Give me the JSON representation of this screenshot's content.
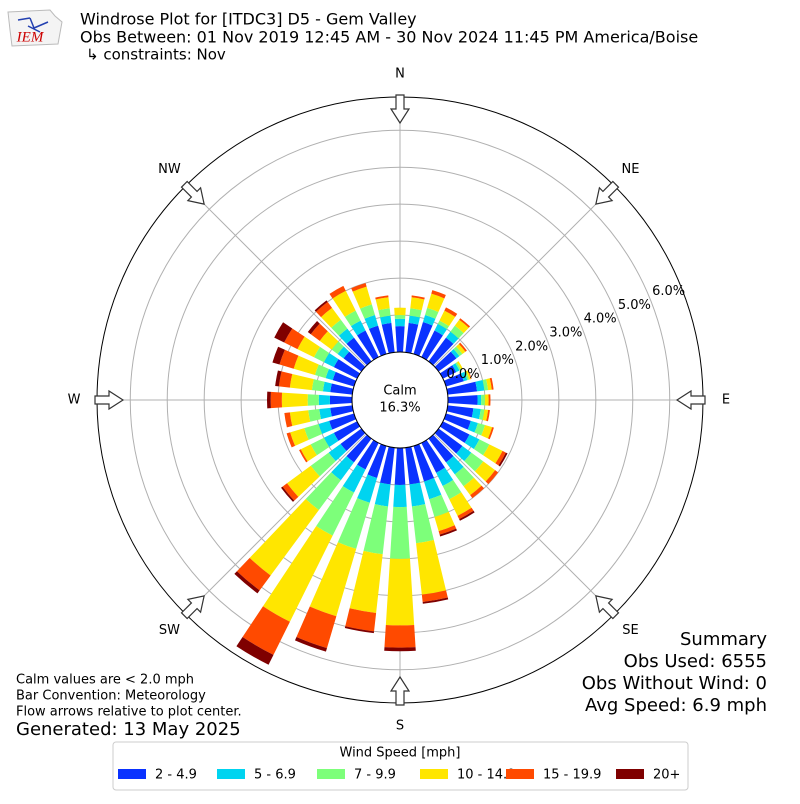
{
  "chart_data": {
    "type": "windrose",
    "title_lines": [
      "Windrose Plot for [ITDC3] D5 - Gem Valley",
      "Obs Between: 01 Nov 2019 12:45 AM - 30 Nov 2024 11:45 PM America/Boise",
      "↳ constraints: Nov"
    ],
    "logo_text": "IEM",
    "directions": [
      0,
      10,
      20,
      30,
      40,
      50,
      60,
      70,
      80,
      90,
      100,
      110,
      120,
      130,
      140,
      150,
      160,
      170,
      180,
      190,
      200,
      210,
      220,
      230,
      240,
      250,
      260,
      270,
      280,
      290,
      300,
      310,
      320,
      330,
      340,
      350
    ],
    "direction_labels": [
      "N",
      "NE",
      "E",
      "SE",
      "S",
      "SW",
      "W",
      "NW"
    ],
    "rlim": [
      0,
      6.9
    ],
    "rticks": [
      {
        "value": 0,
        "label": "0.0%"
      },
      {
        "value": 1,
        "label": "1.0%"
      },
      {
        "value": 2,
        "label": "2.0%"
      },
      {
        "value": 3,
        "label": "3.0%"
      },
      {
        "value": 4,
        "label": "4.0%"
      },
      {
        "value": 5,
        "label": "5.0%"
      },
      {
        "value": 6,
        "label": "6.0%"
      }
    ],
    "grid": true,
    "calm": {
      "label": "Calm",
      "text": "16.3%"
    },
    "legend_title": "Wind Speed [mph]",
    "series": [
      {
        "name": "2 - 4.9",
        "color": "#0a32ff",
        "values": [
          0.7,
          0.8,
          0.9,
          0.8,
          0.8,
          0.6,
          0.4,
          0.5,
          0.8,
          0.8,
          0.7,
          0.7,
          0.8,
          0.8,
          0.8,
          0.9,
          1.0,
          1.0,
          1.0,
          1.0,
          0.9,
          0.8,
          0.8,
          0.7,
          0.7,
          0.7,
          0.6,
          0.6,
          0.6,
          0.6,
          0.7,
          0.6,
          0.8,
          0.8,
          0.8,
          0.8
        ]
      },
      {
        "name": "5 - 6.9",
        "color": "#00d4f0",
        "values": [
          0.2,
          0.2,
          0.2,
          0.2,
          0.2,
          0.1,
          0.1,
          0.1,
          0.2,
          0.1,
          0.2,
          0.2,
          0.3,
          0.3,
          0.4,
          0.4,
          0.5,
          0.6,
          0.6,
          0.6,
          0.7,
          0.7,
          0.6,
          0.4,
          0.3,
          0.3,
          0.3,
          0.3,
          0.2,
          0.2,
          0.3,
          0.2,
          0.3,
          0.3,
          0.3,
          0.2
        ]
      },
      {
        "name": "7 - 9.9",
        "color": "#7dff7a",
        "values": [
          0.1,
          0.2,
          0.2,
          0.1,
          0.2,
          0.1,
          0.05,
          0.05,
          0.1,
          0.1,
          0.1,
          0.2,
          0.3,
          0.4,
          0.4,
          0.4,
          0.5,
          1.0,
          1.4,
          1.3,
          1.3,
          1.3,
          1.0,
          0.6,
          0.4,
          0.4,
          0.3,
          0.3,
          0.3,
          0.3,
          0.3,
          0.2,
          0.3,
          0.3,
          0.3,
          0.2
        ]
      },
      {
        "name": "10 - 14.9",
        "color": "#ffe600",
        "values": [
          0.2,
          0.3,
          0.4,
          0.3,
          0.2,
          0.1,
          0.05,
          0.05,
          0.1,
          0.1,
          0.1,
          0.2,
          0.4,
          0.4,
          0.3,
          0.5,
          0.4,
          1.4,
          1.8,
          1.6,
          1.9,
          2.6,
          2.2,
          0.8,
          0.3,
          0.4,
          0.5,
          0.7,
          0.6,
          0.6,
          0.5,
          0.4,
          0.4,
          0.6,
          0.5,
          0.3
        ]
      },
      {
        "name": "15 - 19.9",
        "color": "#ff4a00",
        "values": [
          0,
          0.05,
          0.1,
          0.1,
          0.05,
          0.05,
          0,
          0.02,
          0.05,
          0.05,
          0.05,
          0.05,
          0.1,
          0.1,
          0.1,
          0.1,
          0.1,
          0.2,
          0.6,
          0.5,
          0.9,
          1.0,
          0.5,
          0.15,
          0.05,
          0.1,
          0.15,
          0.3,
          0.3,
          0.4,
          0.4,
          0.3,
          0.2,
          0.15,
          0.1,
          0.05
        ]
      },
      {
        "name": "20+",
        "color": "#7f0000",
        "values": [
          0,
          0,
          0,
          0,
          0,
          0,
          0,
          0,
          0,
          0,
          0,
          0,
          0.05,
          0,
          0,
          0.05,
          0.05,
          0.05,
          0.1,
          0.05,
          0.1,
          0.3,
          0.1,
          0.05,
          0,
          0,
          0,
          0.1,
          0.1,
          0.2,
          0.3,
          0.1,
          0.05,
          0,
          0,
          0
        ]
      }
    ],
    "notes": [
      "Calm values are < 2.0 mph",
      "Bar Convention: Meteorology",
      "Flow arrows relative to plot center."
    ],
    "generated": "Generated: 13 May 2025",
    "summary": [
      "Summary",
      "Obs Used: 6555",
      "Obs Without Wind: 0",
      "Avg Speed: 6.9 mph"
    ]
  }
}
